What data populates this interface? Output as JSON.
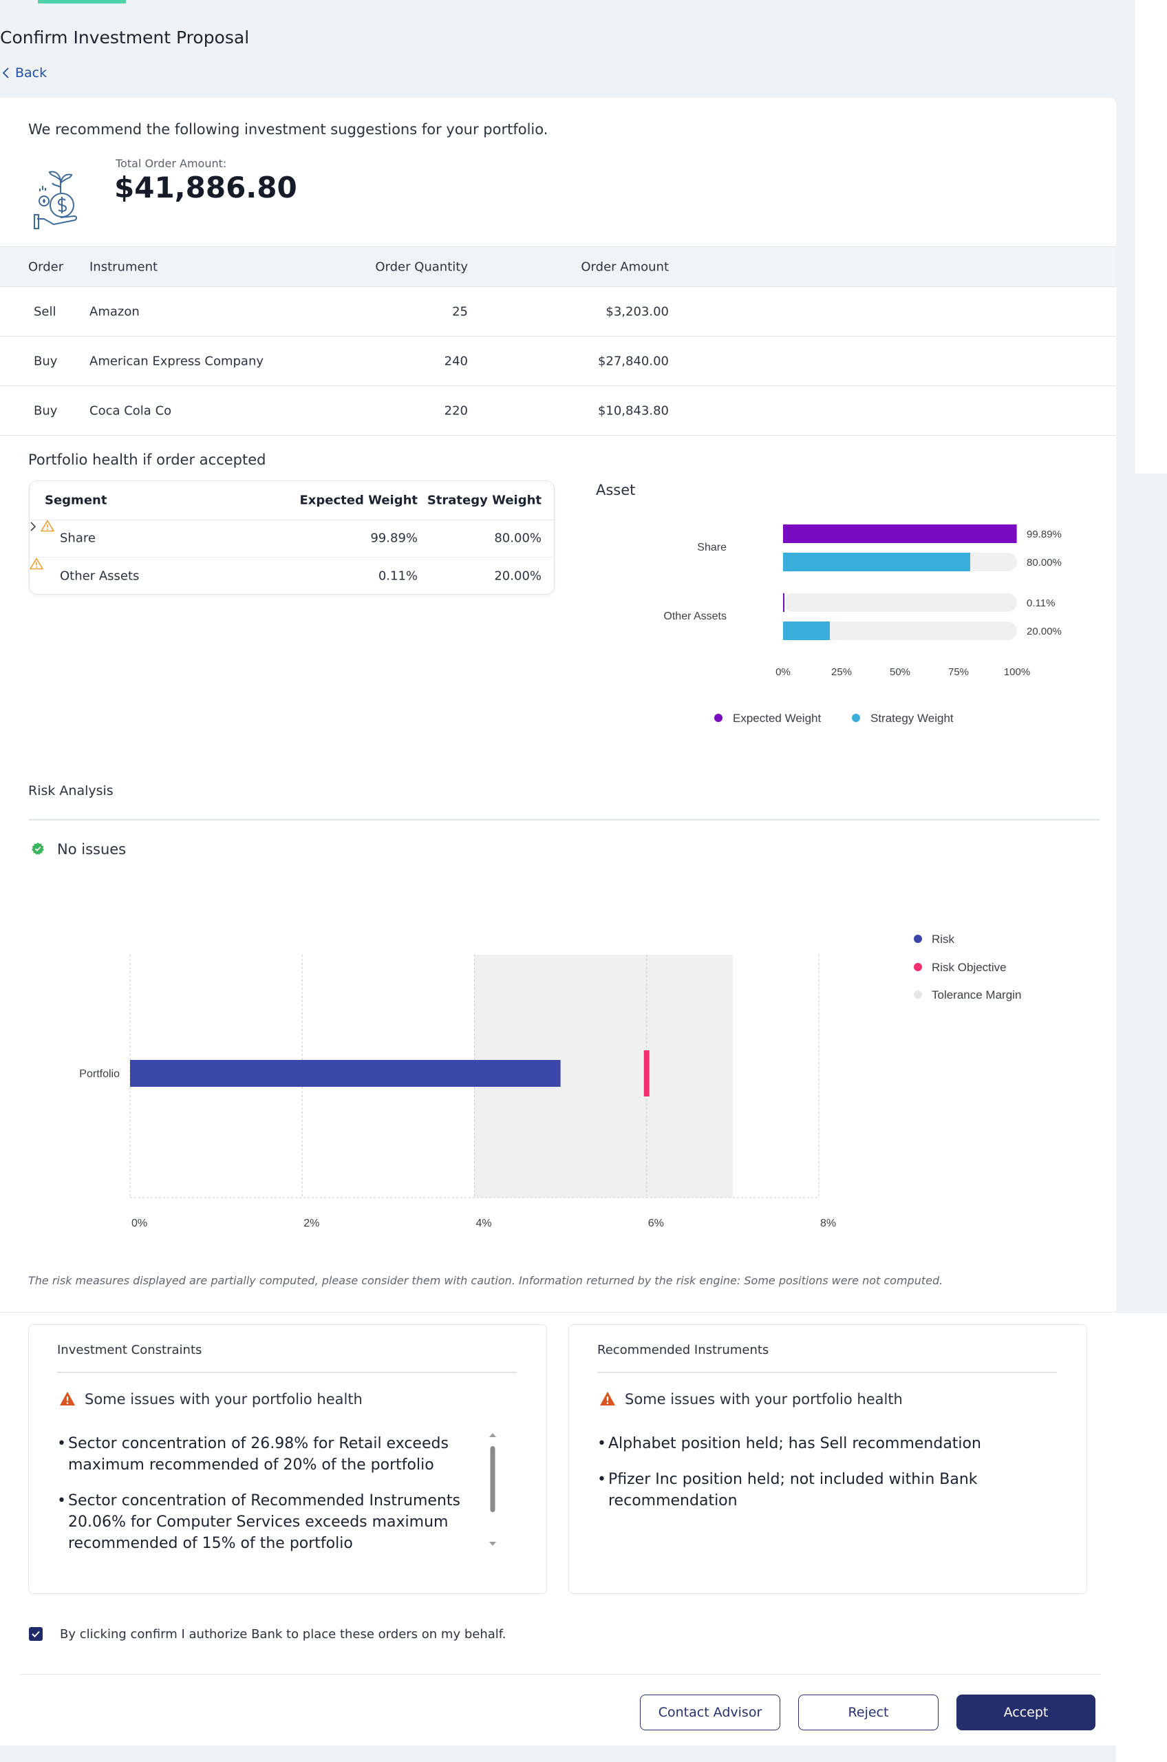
{
  "header": {
    "title": "Confirm Investment Proposal",
    "back_label": "Back"
  },
  "summary": {
    "intro": "We recommend the following investment suggestions for your portfolio.",
    "total_label": "Total Order Amount:",
    "total_value": "$41,886.80"
  },
  "orders": {
    "columns": {
      "order": "Order",
      "instrument": "Instrument",
      "quantity": "Order Quantity",
      "amount": "Order Amount"
    },
    "rows": [
      {
        "order": "Sell",
        "instrument": "Amazon",
        "quantity": "25",
        "amount": "$3,203.00"
      },
      {
        "order": "Buy",
        "instrument": "American Express Company",
        "quantity": "240",
        "amount": "$27,840.00"
      },
      {
        "order": "Buy",
        "instrument": "Coca Cola Co",
        "quantity": "220",
        "amount": "$10,843.80"
      }
    ]
  },
  "portfolio_health": {
    "title": "Portfolio health if order accepted",
    "columns": {
      "segment": "Segment",
      "expected": "Expected Weight",
      "strategy": "Strategy Weight"
    },
    "rows": [
      {
        "segment": "Share",
        "expected": "99.89%",
        "strategy": "80.00%"
      },
      {
        "segment": "Other Assets",
        "expected": "0.11%",
        "strategy": "20.00%"
      }
    ],
    "asset_title": "Asset"
  },
  "risk": {
    "title": "Risk Analysis",
    "status": "No issues",
    "disclaimer": "The risk measures displayed are partially computed,  please consider them with caution. Information returned by the risk engine: Some positions were not computed."
  },
  "chart_data": [
    {
      "type": "bar",
      "orientation": "horizontal",
      "categories": [
        "Share",
        "Other Assets"
      ],
      "series": [
        {
          "name": "Expected Weight",
          "values": [
            99.89,
            0.11
          ],
          "color": "#7a0bc0"
        },
        {
          "name": "Strategy Weight",
          "values": [
            80.0,
            20.0
          ],
          "color": "#3aaedb"
        }
      ],
      "value_labels": [
        [
          "99.89%",
          "0.11%"
        ],
        [
          "80.00%",
          "20.00%"
        ]
      ],
      "xlim": [
        0,
        100
      ],
      "xticks": [
        "0%",
        "25%",
        "50%",
        "75%",
        "100%"
      ],
      "legend": "bottom",
      "grid": true
    },
    {
      "type": "bar",
      "orientation": "horizontal",
      "categories": [
        "Portfolio"
      ],
      "series": [
        {
          "name": "Risk",
          "values": [
            5.0
          ],
          "color": "#3a47a8"
        },
        {
          "name": "Risk Objective",
          "values": [
            6.0
          ],
          "color": "#f0306f"
        },
        {
          "name": "Tolerance Margin",
          "range": [
            4.0,
            7.0
          ],
          "color": "#e6e6e6"
        }
      ],
      "xlim": [
        0,
        8
      ],
      "xticks": [
        "0%",
        "2%",
        "4%",
        "6%",
        "8%"
      ],
      "legend": "right",
      "grid": true
    }
  ],
  "constraints": {
    "title": "Investment Constraints",
    "status": "Some issues with your portfolio health",
    "items": [
      "Sector concentration of 26.98% for Retail exceeds maximum recommended of 20% of the portfolio",
      "Sector concentration of Recommended Instruments 20.06% for Computer Services exceeds maximum recommended of 15% of the portfolio"
    ]
  },
  "recommended": {
    "title": "Recommended Instruments",
    "status": "Some issues with your portfolio health",
    "items": [
      "Alphabet position held; has Sell recommendation",
      "Pfizer Inc position held; not included within Bank recommendation"
    ]
  },
  "authorization": {
    "text": "By clicking confirm I authorize Bank to place these orders on my behalf."
  },
  "actions": {
    "contact": "Contact Advisor",
    "reject": "Reject",
    "accept": "Accept"
  },
  "colors": {
    "accent": "#252d6c",
    "link": "#1f4fa8",
    "warning": "#d9541e",
    "warning_outline": "#f0a030",
    "success": "#3bb55c"
  },
  "icons": {
    "back": "chevron-left-icon",
    "plant_money": "plant-money-icon",
    "warning": "warning-icon",
    "success": "check-circle-icon"
  }
}
